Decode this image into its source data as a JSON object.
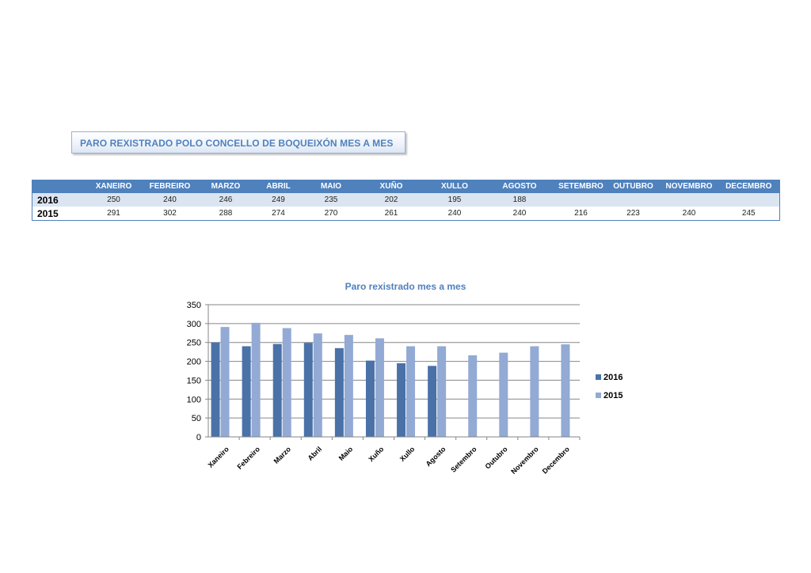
{
  "header_title": "PARO REXISTRADO POLO CONCELLO DE BOQUEIXÓN MES A MES",
  "table": {
    "columns": [
      "XANEIRO",
      "FEBREIRO",
      "MARZO",
      "ABRIL",
      "MAIO",
      "XUÑO",
      "XULLO",
      "AGOSTO",
      "SETEMBRO",
      "OUTUBRO",
      "NOVEMBRO",
      "DECEMBRO"
    ],
    "rows": [
      {
        "year": "2016",
        "values": [
          "250",
          "240",
          "246",
          "249",
          "235",
          "202",
          "195",
          "188",
          "",
          "",
          "",
          ""
        ]
      },
      {
        "year": "2015",
        "values": [
          "291",
          "302",
          "288",
          "274",
          "270",
          "261",
          "240",
          "240",
          "216",
          "223",
          "240",
          "245"
        ]
      }
    ]
  },
  "colors": {
    "series_2016": "#4a72a8",
    "series_2015": "#92aad4",
    "header_blue": "#4f81bd",
    "title_text": "#4f81bd"
  },
  "chart_data": {
    "type": "bar",
    "title": "Paro rexistrado mes a mes",
    "categories": [
      "Xaneiro",
      "Febreiro",
      "Marzo",
      "Abril",
      "Maio",
      "Xuño",
      "Xullo",
      "Agosto",
      "Setembro",
      "Outubro",
      "Novembro",
      "Decembro"
    ],
    "series": [
      {
        "name": "2016",
        "values": [
          250,
          240,
          246,
          249,
          235,
          202,
          195,
          188,
          null,
          null,
          null,
          null
        ]
      },
      {
        "name": "2015",
        "values": [
          291,
          302,
          288,
          274,
          270,
          261,
          240,
          240,
          216,
          223,
          240,
          245
        ]
      }
    ],
    "ylim": [
      0,
      350
    ],
    "yticks": [
      "0",
      "50",
      "100",
      "150",
      "200",
      "250",
      "300",
      "350"
    ],
    "grid": true,
    "legend": "right"
  }
}
